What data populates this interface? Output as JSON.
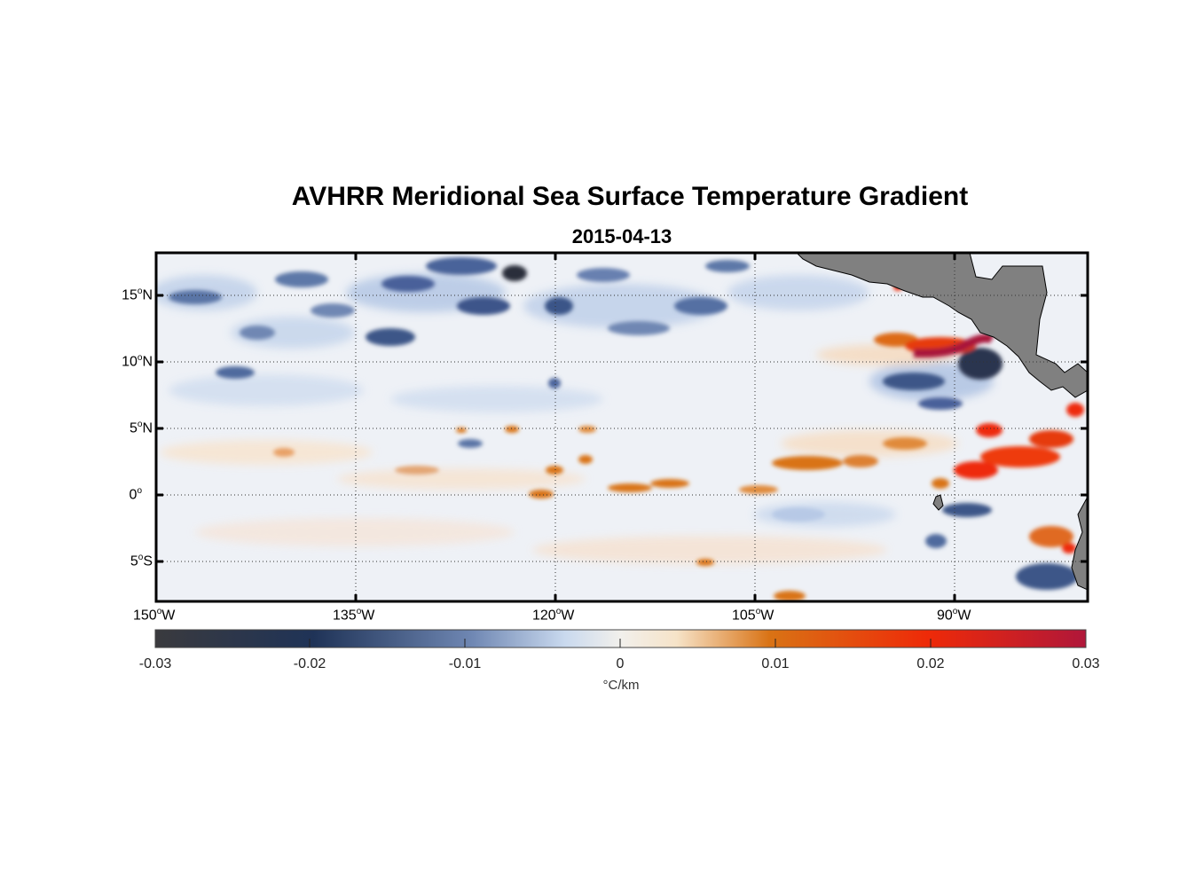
{
  "title": "AVHRR Meridional Sea Surface Temperature Gradient",
  "subtitle": "2015-04-13",
  "x_axis": {
    "ticks": [
      {
        "deg": "150",
        "hemi": "W"
      },
      {
        "deg": "135",
        "hemi": "W"
      },
      {
        "deg": "120",
        "hemi": "W"
      },
      {
        "deg": "105",
        "hemi": "W"
      },
      {
        "deg": "90",
        "hemi": "W"
      }
    ]
  },
  "y_axis": {
    "ticks": [
      {
        "deg": "15",
        "hemi": "N"
      },
      {
        "deg": "10",
        "hemi": "N"
      },
      {
        "deg": "5",
        "hemi": "N"
      },
      {
        "deg": "0",
        "hemi": ""
      },
      {
        "deg": "5",
        "hemi": "S"
      }
    ]
  },
  "colorbar": {
    "ticks": [
      "-0.03",
      "-0.02",
      "-0.01",
      "0",
      "0.01",
      "0.02",
      "0.03"
    ],
    "unit": "°C/km",
    "colors": [
      "#3a3a3e",
      "#1f3357",
      "#6f87b3",
      "#f2f0ec",
      "#f6e3c8",
      "#d97315",
      "#ee2a08",
      "#b0173a"
    ]
  },
  "map_colors": {
    "land": "#808080",
    "frame": "#000000"
  }
}
